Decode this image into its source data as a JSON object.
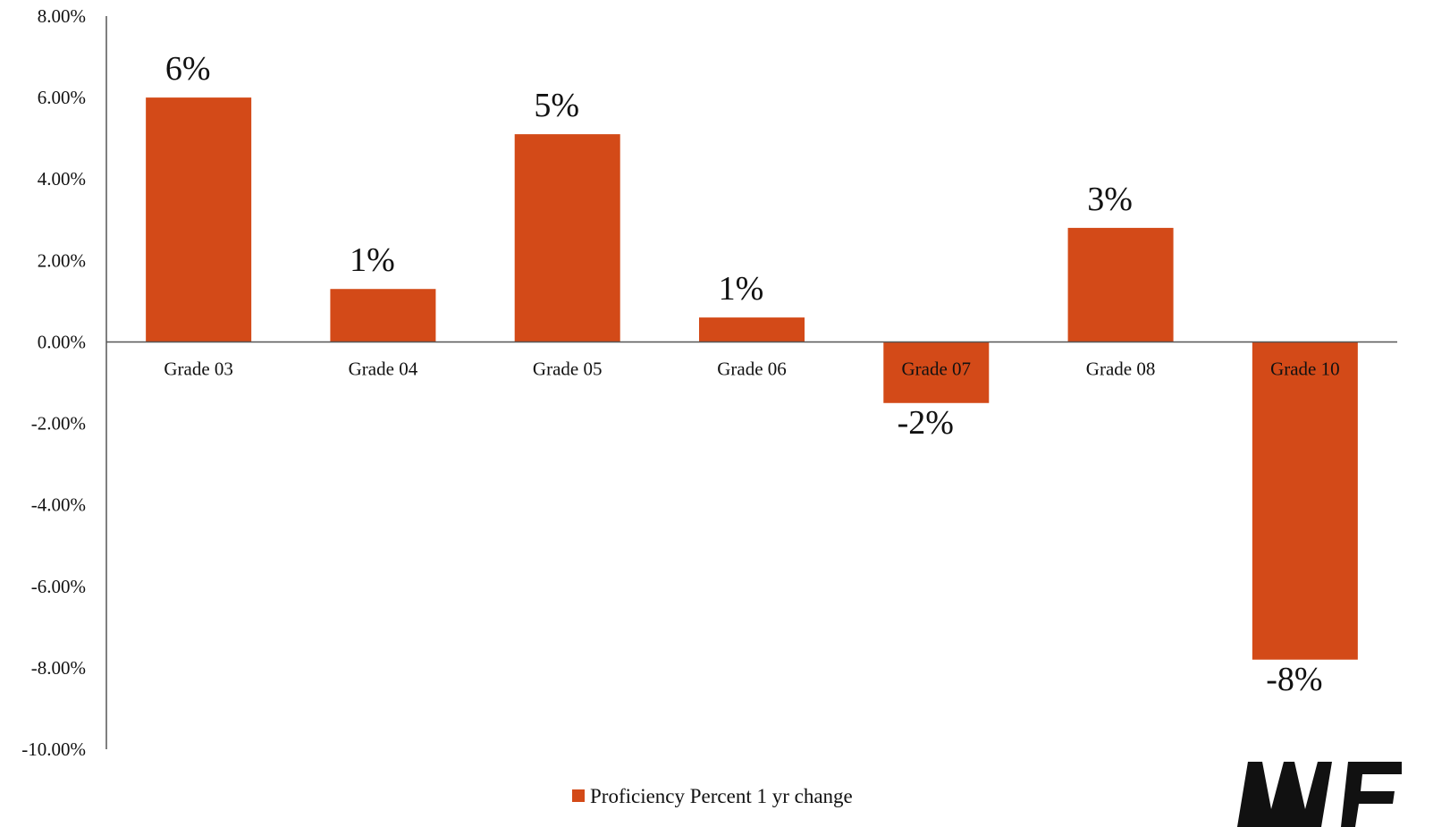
{
  "chart_data": {
    "type": "bar",
    "categories": [
      "Grade 03",
      "Grade 04",
      "Grade 05",
      "Grade 06",
      "Grade 07",
      "Grade 08",
      "Grade 10"
    ],
    "series": [
      {
        "name": "Proficiency Percent 1 yr change",
        "values": [
          0.06,
          0.013,
          0.051,
          0.006,
          -0.015,
          0.028,
          -0.078
        ],
        "data_labels": [
          "6%",
          "1%",
          "5%",
          "1%",
          "-2%",
          "3%",
          "-8%"
        ],
        "color": "#D34A18"
      }
    ],
    "yticks": [
      0.08,
      0.06,
      0.04,
      0.02,
      0,
      -0.02,
      -0.04,
      -0.06,
      -0.08,
      -0.1
    ],
    "ytick_labels": [
      "8.00%",
      "6.00%",
      "4.00%",
      "2.00%",
      "0.00%",
      "-2.00%",
      "-4.00%",
      "-6.00%",
      "-8.00%",
      "-10.00%"
    ],
    "ylim": [
      -0.1,
      0.08
    ],
    "grid": false,
    "legend_position": "bottom",
    "title": "",
    "xlabel": "",
    "ylabel": ""
  },
  "colors": {
    "bar": "#D34A18",
    "axis": "#555555",
    "text": "#111111",
    "logo": "#111111"
  },
  "logo": {
    "name": "partial-logo-mark"
  }
}
